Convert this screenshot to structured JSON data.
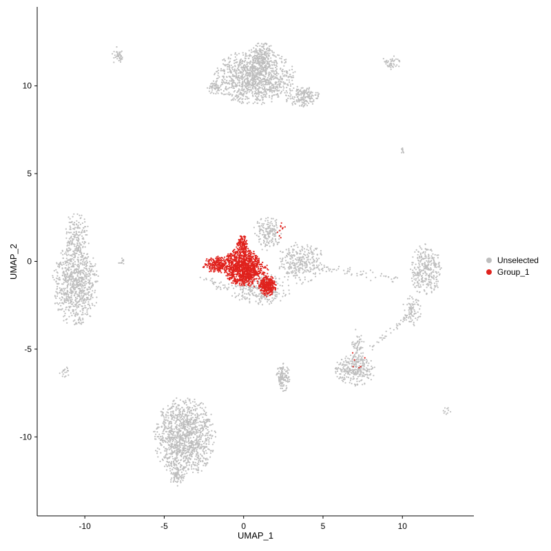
{
  "chart_data": {
    "type": "scatter",
    "title": "",
    "xlabel": "UMAP_1",
    "ylabel": "UMAP_2",
    "xlim": [
      -13.0,
      14.5
    ],
    "ylim": [
      -14.5,
      14.5
    ],
    "xticks": [
      -10,
      -5,
      0,
      5,
      10
    ],
    "yticks": [
      -10,
      -5,
      0,
      5,
      10
    ],
    "grid": false,
    "legend": {
      "position": "right"
    },
    "series": [
      {
        "name": "Unselected",
        "color": "#bebebe"
      },
      {
        "name": "Group_1",
        "color": "#e0221d"
      }
    ],
    "clusters": [
      {
        "series": 0,
        "cx": 0.7,
        "cy": 10.5,
        "rx": 2.6,
        "ry": 1.6,
        "n": 1100
      },
      {
        "series": 0,
        "cx": 1.2,
        "cy": 11.6,
        "rx": 0.8,
        "ry": 1.0,
        "n": 180
      },
      {
        "series": 0,
        "cx": -1.8,
        "cy": 9.9,
        "rx": 0.5,
        "ry": 0.4,
        "n": 50
      },
      {
        "series": 0,
        "cx": 3.7,
        "cy": 9.4,
        "rx": 1.2,
        "ry": 0.6,
        "n": 170
      },
      {
        "series": 0,
        "cx": -7.9,
        "cy": 11.7,
        "rx": 0.4,
        "ry": 0.55,
        "n": 40
      },
      {
        "series": 0,
        "cx": 9.3,
        "cy": 11.3,
        "rx": 0.6,
        "ry": 0.45,
        "n": 45
      },
      {
        "series": 0,
        "cx": 10.0,
        "cy": 6.3,
        "rx": 0.12,
        "ry": 0.2,
        "n": 8
      },
      {
        "series": 0,
        "cx": -10.6,
        "cy": -1.3,
        "rx": 1.5,
        "ry": 2.4,
        "n": 800
      },
      {
        "series": 0,
        "cx": -10.5,
        "cy": 1.5,
        "rx": 0.8,
        "ry": 1.4,
        "n": 160
      },
      {
        "series": 0,
        "cx": -7.7,
        "cy": 0.0,
        "rx": 0.3,
        "ry": 0.2,
        "n": 12
      },
      {
        "series": 0,
        "cx": -11.3,
        "cy": -6.3,
        "rx": 0.3,
        "ry": 0.4,
        "n": 18
      },
      {
        "series": 0,
        "cx": -3.7,
        "cy": -10.0,
        "rx": 2.0,
        "ry": 2.3,
        "n": 1200
      },
      {
        "series": 0,
        "cx": -4.2,
        "cy": -12.2,
        "rx": 0.5,
        "ry": 0.6,
        "n": 60
      },
      {
        "series": 0,
        "cx": 2.5,
        "cy": -6.6,
        "rx": 0.45,
        "ry": 0.8,
        "n": 120
      },
      {
        "series": 0,
        "cx": 7.0,
        "cy": -6.2,
        "rx": 1.3,
        "ry": 0.9,
        "n": 280
      },
      {
        "series": 0,
        "cx": 7.2,
        "cy": -4.8,
        "rx": 0.4,
        "ry": 1.0,
        "n": 60
      },
      {
        "series": 0,
        "cx": 11.5,
        "cy": -0.5,
        "rx": 1.0,
        "ry": 1.5,
        "n": 300
      },
      {
        "series": 0,
        "cx": 10.6,
        "cy": -2.8,
        "rx": 0.6,
        "ry": 0.9,
        "n": 80
      },
      {
        "series": 0,
        "cx": 3.6,
        "cy": -0.1,
        "rx": 1.6,
        "ry": 1.2,
        "n": 280
      },
      {
        "series": 0,
        "cx": 1.5,
        "cy": 1.6,
        "rx": 0.9,
        "ry": 1.0,
        "n": 160
      },
      {
        "series": 0,
        "cx": 1.0,
        "cy": -1.6,
        "rx": 2.0,
        "ry": 0.9,
        "n": 260
      },
      {
        "series": 0,
        "cx": 12.8,
        "cy": -8.6,
        "rx": 0.25,
        "ry": 0.3,
        "n": 10
      },
      {
        "series": 1,
        "cx": -0.1,
        "cy": -0.3,
        "rx": 1.2,
        "ry": 1.1,
        "n": 900
      },
      {
        "series": 1,
        "cx": -1.6,
        "cy": -0.2,
        "rx": 1.0,
        "ry": 0.5,
        "n": 240
      },
      {
        "series": 1,
        "cx": -0.1,
        "cy": 0.9,
        "rx": 0.4,
        "ry": 0.6,
        "n": 120
      },
      {
        "series": 1,
        "cx": 1.5,
        "cy": -1.4,
        "rx": 0.55,
        "ry": 0.6,
        "n": 300
      },
      {
        "series": 1,
        "cx": 0.6,
        "cy": -0.6,
        "rx": 1.1,
        "ry": 0.9,
        "n": 200
      },
      {
        "series": 1,
        "cx": 2.3,
        "cy": 1.8,
        "rx": 0.35,
        "ry": 0.55,
        "n": 10
      },
      {
        "series": 1,
        "cx": 7.2,
        "cy": -5.7,
        "rx": 0.6,
        "ry": 0.6,
        "n": 6
      }
    ],
    "bridges": [
      {
        "series": 0,
        "from": [
          4.5,
          -0.3
        ],
        "to": [
          9.8,
          -1.0
        ],
        "n": 60,
        "jitter": 0.3
      },
      {
        "series": 0,
        "from": [
          8.0,
          -5.0
        ],
        "to": [
          10.5,
          -3.0
        ],
        "n": 40,
        "jitter": 0.25
      },
      {
        "series": 0,
        "from": [
          -2.6,
          -0.9
        ],
        "to": [
          -0.8,
          -1.6
        ],
        "n": 30,
        "jitter": 0.25
      }
    ]
  }
}
